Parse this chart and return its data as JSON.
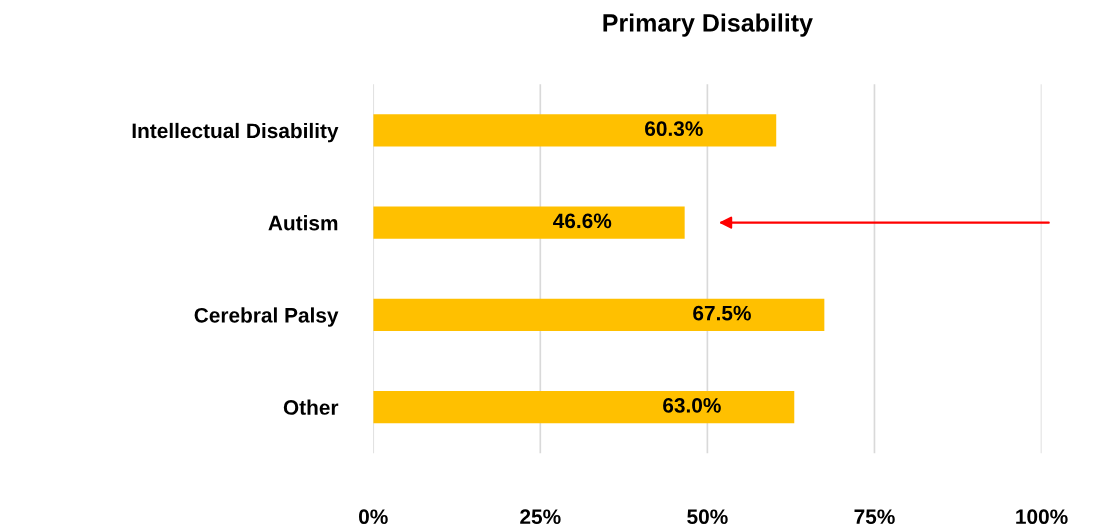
{
  "chart_data": {
    "type": "bar",
    "orientation": "horizontal",
    "title": "Primary Disability",
    "categories": [
      "Intellectual Disability",
      "Autism",
      "Cerebral Palsy",
      "Other"
    ],
    "values": [
      60.3,
      46.6,
      67.5,
      63.0
    ],
    "value_labels": [
      "60.3%",
      "46.6%",
      "67.5%",
      "63.0%"
    ],
    "color": "#ffc000",
    "xlim": [
      0,
      100
    ],
    "xticks": [
      {
        "value": 0,
        "label": "0%"
      },
      {
        "value": 25,
        "label": "25%"
      },
      {
        "value": 50,
        "label": "50%"
      },
      {
        "value": 75,
        "label": "75%"
      },
      {
        "value": 100,
        "label": "100%"
      }
    ],
    "grid": "x",
    "legend": false
  }
}
